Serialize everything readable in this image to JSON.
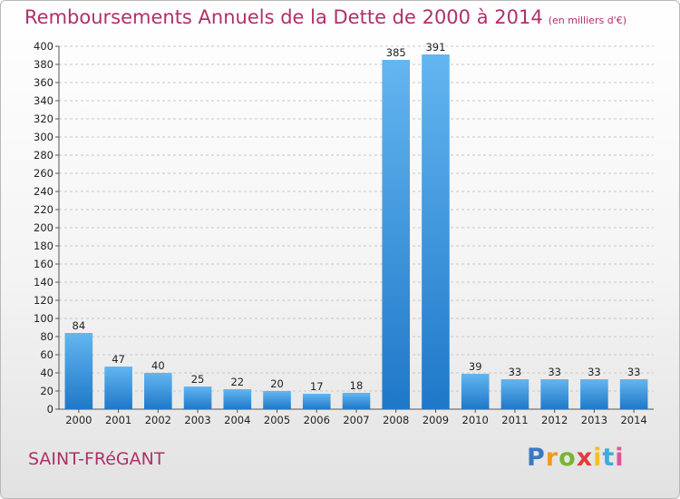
{
  "header": {
    "title": "Remboursements Annuels de la Dette de 2000 à 2014",
    "unit": "(en milliers d'€)"
  },
  "footer": {
    "commune": "SAINT-FRéGANT",
    "brand_letters": [
      {
        "char": "P",
        "color": "#3a78c2"
      },
      {
        "char": "r",
        "color": "#f29a1f"
      },
      {
        "char": "o",
        "color": "#7ab52f"
      },
      {
        "char": "x",
        "color": "#e23b3b"
      },
      {
        "char": "i",
        "color": "#f2c21f"
      },
      {
        "char": "t",
        "color": "#3aaed8"
      },
      {
        "char": "i",
        "color": "#e0559a"
      }
    ]
  },
  "colors": {
    "title": "#b0306a",
    "bar_top": "#63b6f0",
    "bar_bottom": "#1f78c8",
    "grid": "#c8c8c8",
    "axis": "#555555"
  },
  "chart_data": {
    "type": "bar",
    "title": "Remboursements Annuels de la Dette de 2000 à 2014",
    "categories": [
      "2000",
      "2001",
      "2002",
      "2003",
      "2004",
      "2005",
      "2006",
      "2007",
      "2008",
      "2009",
      "2010",
      "2011",
      "2012",
      "2013",
      "2014"
    ],
    "values": [
      84,
      47,
      40,
      25,
      22,
      20,
      17,
      18,
      385,
      391,
      39,
      33,
      33,
      33,
      33
    ],
    "ylim": [
      0,
      400
    ],
    "ytick_step": 20,
    "grid": true
  }
}
